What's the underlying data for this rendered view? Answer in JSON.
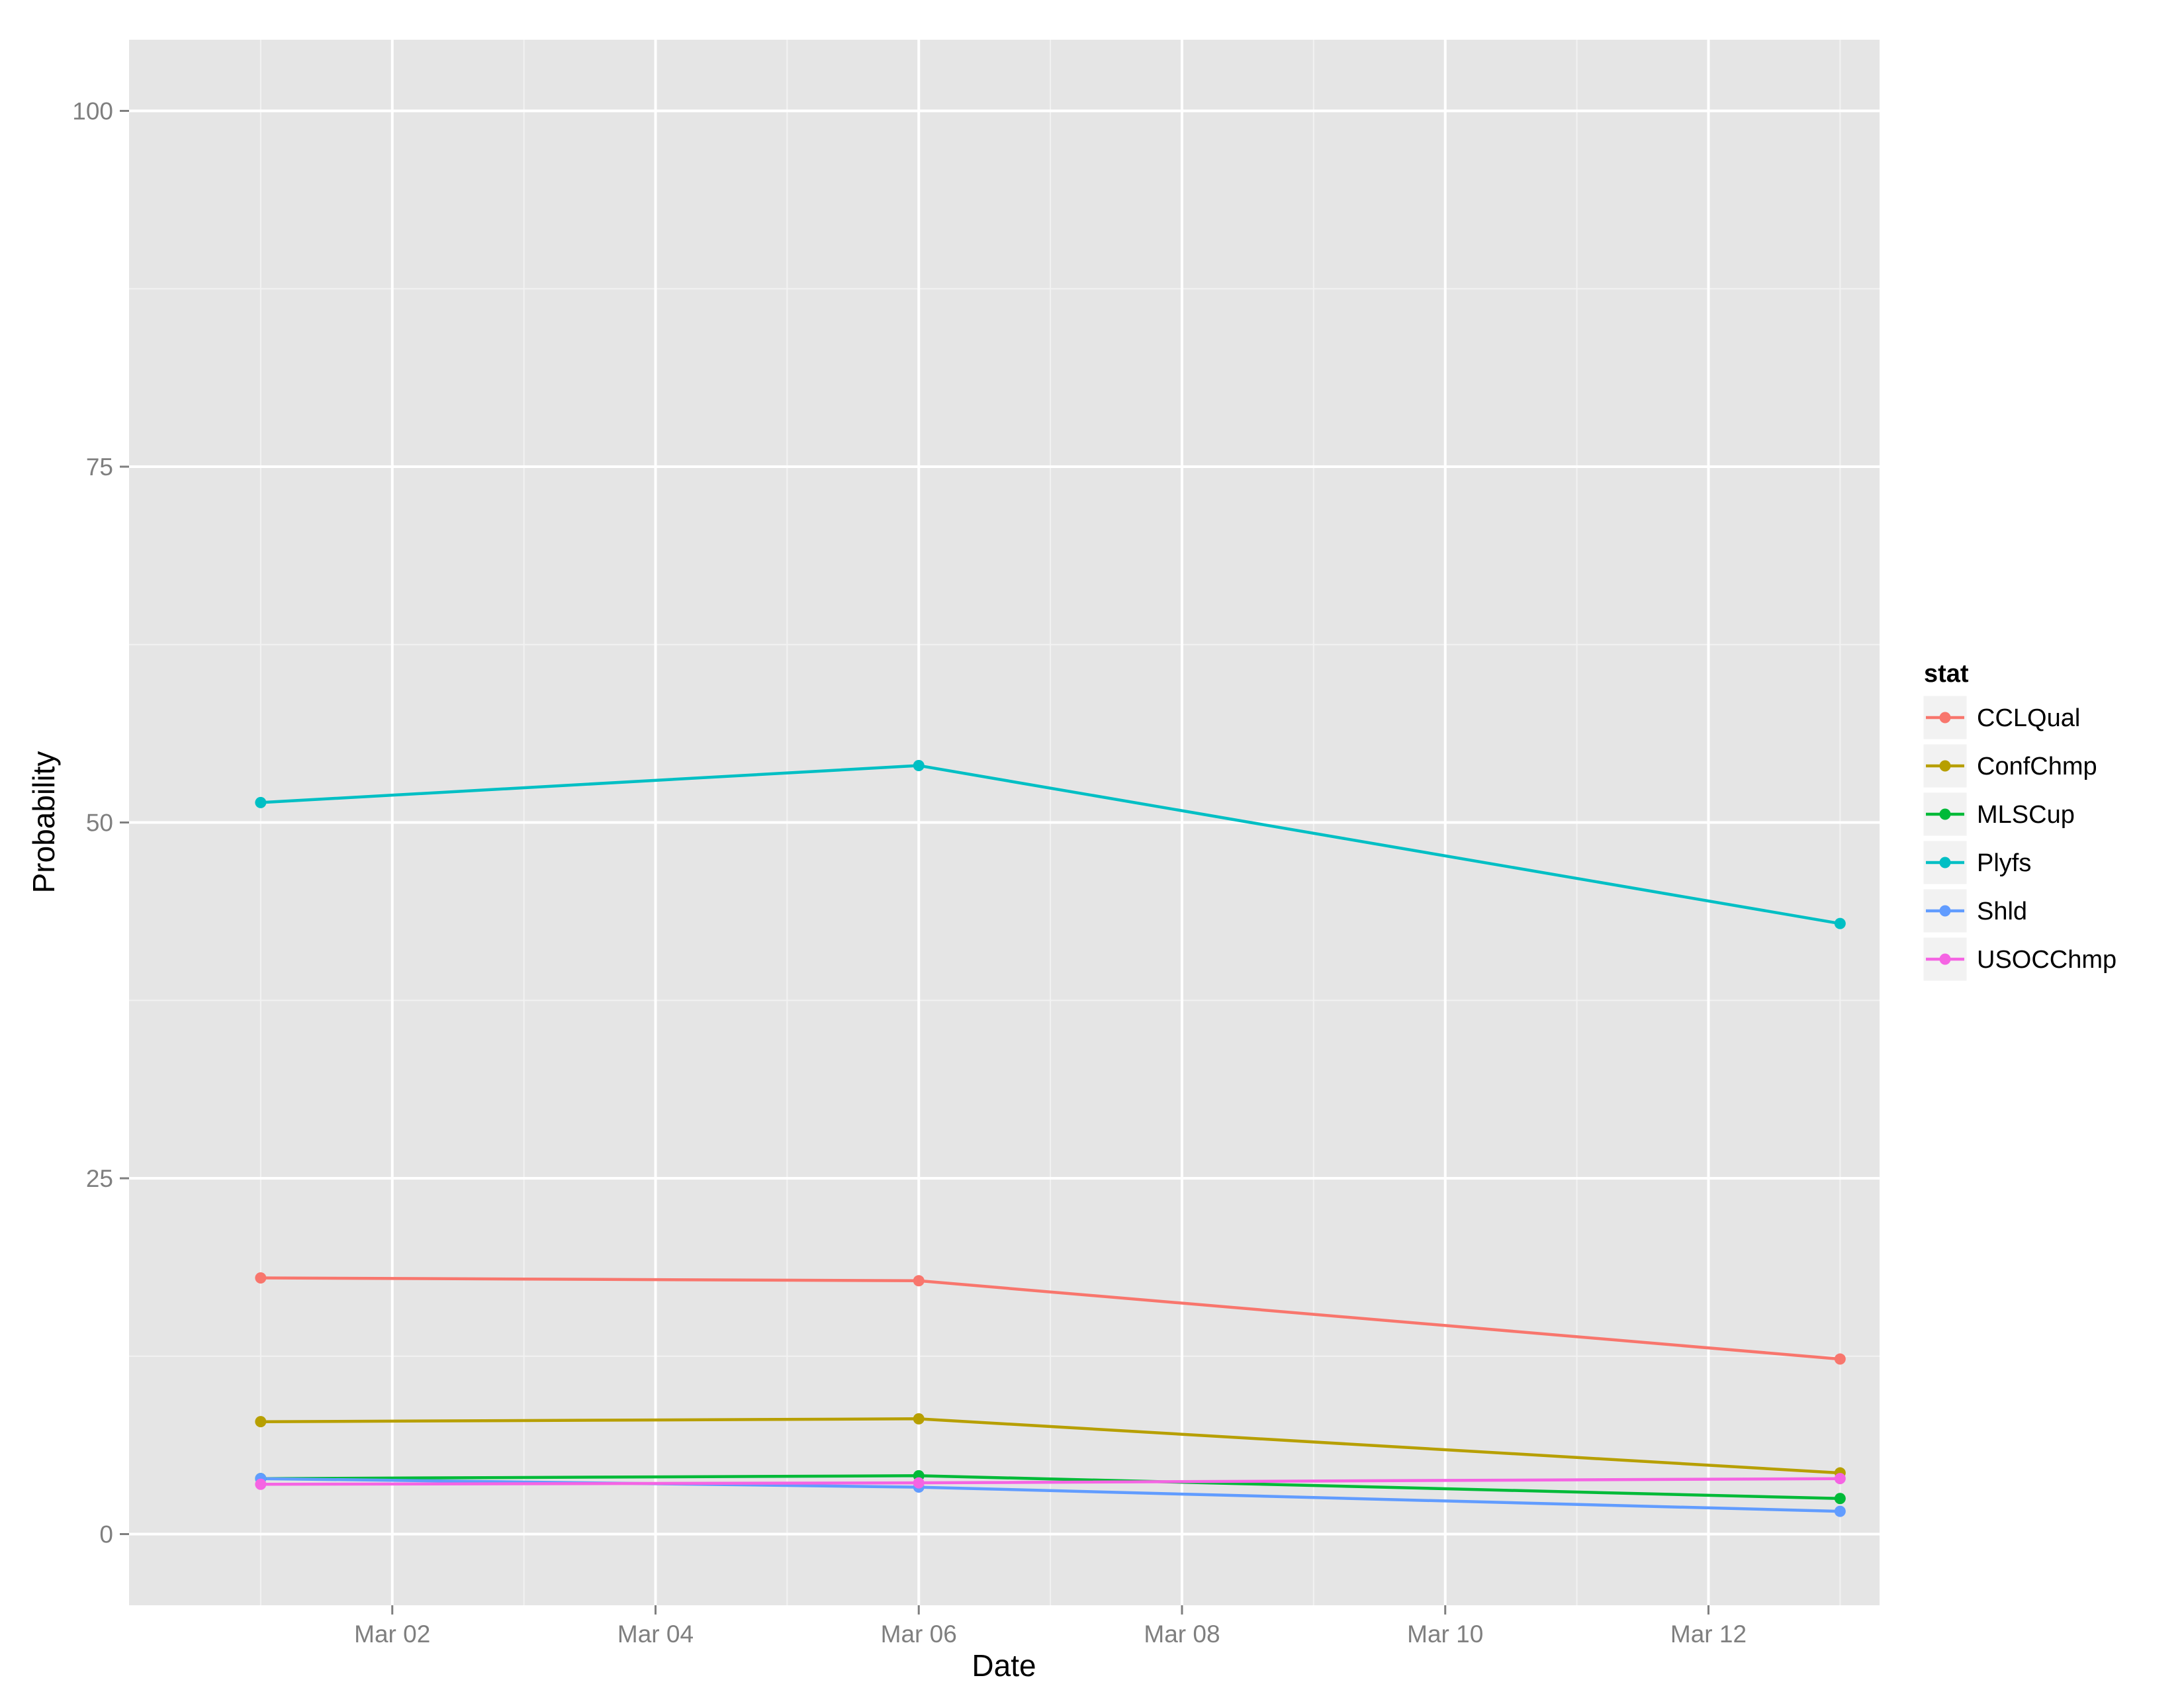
{
  "chart_data": {
    "type": "line",
    "title": "",
    "xlabel": "Date",
    "ylabel": "Probability",
    "x": [
      "2014-03-01",
      "2014-03-06",
      "2014-03-13"
    ],
    "xlim": [
      "2014-02-28",
      "2014-03-13"
    ],
    "x_ticks": [
      {
        "date": "2014-03-02",
        "label": "Mar 02"
      },
      {
        "date": "2014-03-04",
        "label": "Mar 04"
      },
      {
        "date": "2014-03-06",
        "label": "Mar 06"
      },
      {
        "date": "2014-03-08",
        "label": "Mar 08"
      },
      {
        "date": "2014-03-10",
        "label": "Mar 10"
      },
      {
        "date": "2014-03-12",
        "label": "Mar 12"
      }
    ],
    "ylim": [
      -5,
      105
    ],
    "y_ticks": [
      0,
      25,
      50,
      75,
      100
    ],
    "grid": true,
    "legend": {
      "title": "stat",
      "position": "right"
    },
    "series": [
      {
        "name": "CCLQual",
        "color": "#F8766D",
        "values": [
          18.0,
          17.8,
          12.3
        ]
      },
      {
        "name": "ConfChmp",
        "color": "#B79F00",
        "values": [
          7.9,
          8.1,
          4.3
        ]
      },
      {
        "name": "MLSCup",
        "color": "#00BA38",
        "values": [
          3.9,
          4.1,
          2.5
        ]
      },
      {
        "name": "Plyfs",
        "color": "#00BFC4",
        "values": [
          51.4,
          54.0,
          42.9
        ]
      },
      {
        "name": "Shld",
        "color": "#619CFF",
        "values": [
          3.9,
          3.3,
          1.6
        ]
      },
      {
        "name": "USOCChmp",
        "color": "#F564E3",
        "values": [
          3.5,
          3.6,
          3.9
        ]
      }
    ]
  }
}
